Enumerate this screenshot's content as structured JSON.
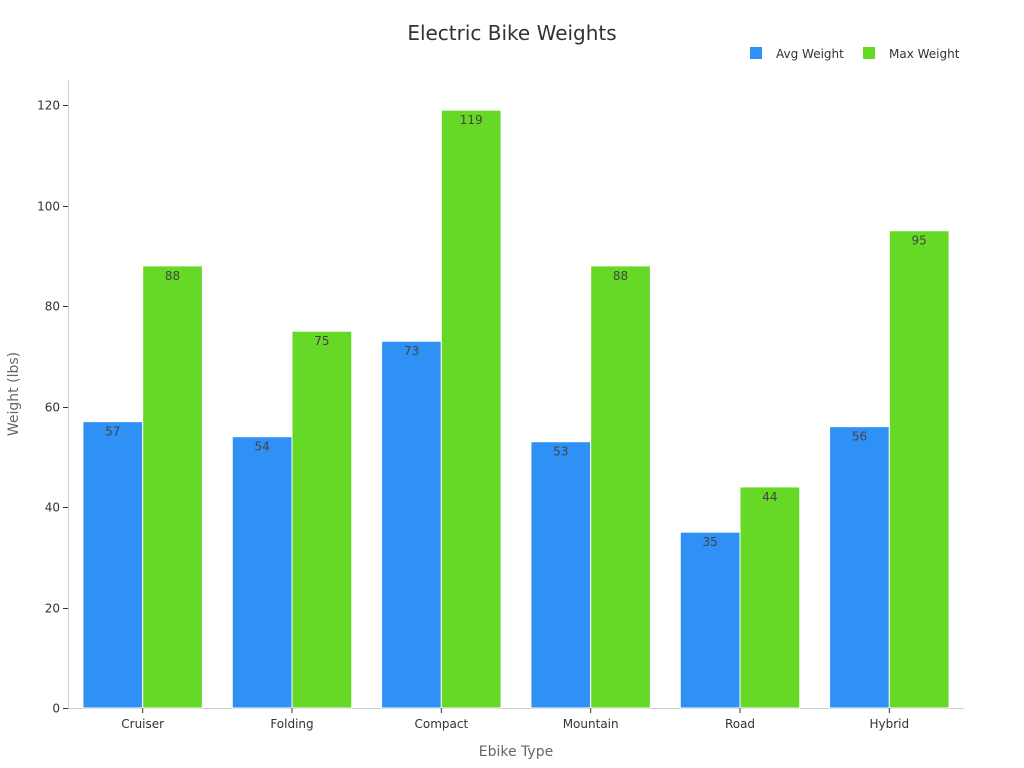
{
  "chart_data": {
    "type": "bar",
    "title": "Electric Bike Weights",
    "xlabel": "Ebike Type",
    "ylabel": "Weight (lbs)",
    "categories": [
      "Cruiser",
      "Folding",
      "Compact",
      "Mountain",
      "Road",
      "Hybrid"
    ],
    "series": [
      {
        "name": "Avg Weight",
        "color": "#2f90f5",
        "values": [
          57,
          54,
          73,
          53,
          35,
          56
        ]
      },
      {
        "name": "Max Weight",
        "color": "#66d926",
        "values": [
          88,
          75,
          119,
          88,
          44,
          95
        ]
      }
    ],
    "ylim": [
      0,
      125
    ],
    "yticks": [
      0,
      20,
      40,
      60,
      80,
      100,
      120
    ],
    "grid": false,
    "legend_position": "top-right"
  }
}
